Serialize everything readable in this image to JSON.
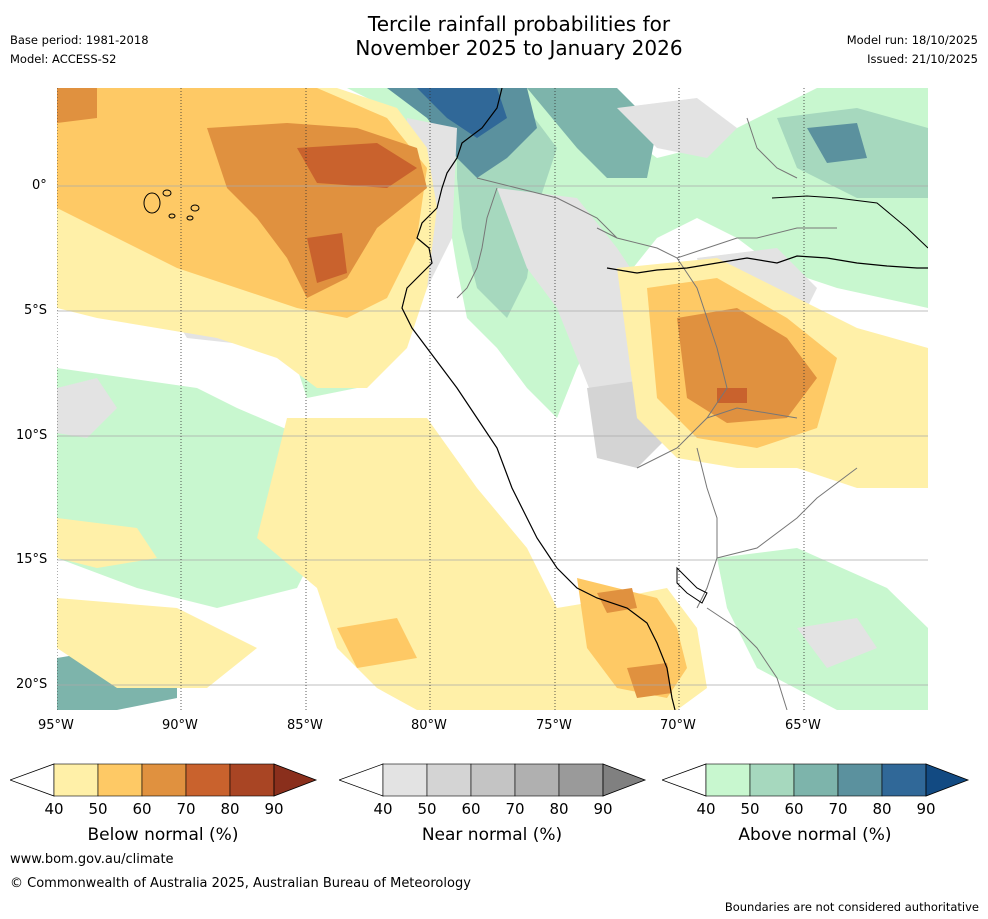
{
  "header": {
    "title_line1": "Tercile rainfall probabilities for",
    "title_line2": "November 2025 to January 2026",
    "base_period": "Base period: 1981-2018",
    "model": "Model: ACCESS-S2",
    "model_run": "Model run: 18/10/2025",
    "issued": "Issued: 21/10/2025"
  },
  "axes": {
    "lat_labels": [
      "0°",
      "5°S",
      "10°S",
      "15°S",
      "20°S"
    ],
    "lon_labels": [
      "95°W",
      "90°W",
      "85°W",
      "80°W",
      "75°W",
      "70°W",
      "65°W"
    ]
  },
  "legends": {
    "below": {
      "title": "Below normal (%)",
      "ticks": [
        "40",
        "50",
        "60",
        "70",
        "80",
        "90"
      ],
      "colors": [
        "#fff0a8",
        "#fec965",
        "#e0913f",
        "#c9622d",
        "#a94524",
        "#8a2f1c"
      ]
    },
    "near": {
      "title": "Near normal (%)",
      "ticks": [
        "40",
        "50",
        "60",
        "70",
        "80",
        "90"
      ],
      "colors": [
        "#e3e3e3",
        "#d4d4d4",
        "#c4c4c4",
        "#b0b0b0",
        "#9a9a9a",
        "#808080"
      ]
    },
    "above": {
      "title": "Above normal (%)",
      "ticks": [
        "40",
        "50",
        "60",
        "70",
        "80",
        "90"
      ],
      "colors": [
        "#c8f7cf",
        "#a6d8be",
        "#7db4ab",
        "#5b919e",
        "#306898",
        "#124a82"
      ]
    }
  },
  "footer": {
    "url": "www.bom.gov.au/climate",
    "copyright": "© Commonwealth of Australia 2025, Australian Bureau of Meteorology",
    "disclaimer": "Boundaries are not considered authoritative"
  }
}
